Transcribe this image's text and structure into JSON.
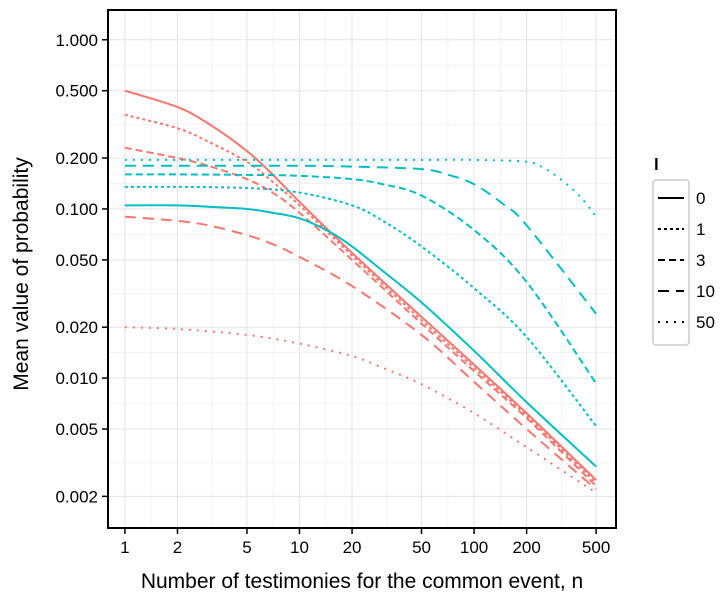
{
  "chart_data": {
    "type": "line",
    "title": "",
    "xlabel": "Number of testimonies for the common event, n",
    "ylabel": "Mean value of probability",
    "x_scale": "log",
    "y_scale": "log",
    "xlim": [
      0.8,
      650
    ],
    "ylim": [
      0.0013,
      1.5
    ],
    "x_ticks": [
      1,
      2,
      5,
      10,
      20,
      50,
      100,
      200,
      500
    ],
    "x_tick_labels": [
      "1",
      "2",
      "5",
      "10",
      "20",
      "50",
      "100",
      "200",
      "500"
    ],
    "y_ticks": [
      0.002,
      0.005,
      0.01,
      0.02,
      0.05,
      0.1,
      0.2,
      0.5,
      1.0
    ],
    "y_tick_labels": [
      "0.002",
      "0.005",
      "0.010",
      "0.020",
      "0.050",
      "0.100",
      "0.200",
      "0.500",
      "1.000"
    ],
    "grid": true,
    "legend": {
      "title": "l",
      "placement": "right",
      "entries": [
        "0",
        "1",
        "3",
        "10",
        "50"
      ],
      "dash_styles": [
        "solid",
        "dotted-dense",
        "dashed-short",
        "dashed-long",
        "dotted-sparse"
      ]
    },
    "series": [
      {
        "group": "red",
        "l": "0",
        "color": "#F8766D",
        "x": [
          1,
          2,
          3,
          5,
          7,
          10,
          20,
          50,
          100,
          200,
          500
        ],
        "y": [
          0.5,
          0.4,
          0.32,
          0.22,
          0.16,
          0.11,
          0.055,
          0.023,
          0.012,
          0.0062,
          0.0025
        ]
      },
      {
        "group": "red",
        "l": "1",
        "color": "#F8766D",
        "x": [
          1,
          2,
          3,
          5,
          7,
          10,
          20,
          50,
          100,
          200,
          500
        ],
        "y": [
          0.36,
          0.3,
          0.25,
          0.19,
          0.145,
          0.105,
          0.053,
          0.022,
          0.0115,
          0.006,
          0.0024
        ]
      },
      {
        "group": "red",
        "l": "3",
        "color": "#F8766D",
        "x": [
          1,
          2,
          3,
          5,
          7,
          10,
          20,
          50,
          100,
          200,
          500
        ],
        "y": [
          0.23,
          0.2,
          0.18,
          0.15,
          0.125,
          0.095,
          0.05,
          0.021,
          0.011,
          0.0058,
          0.0023
        ]
      },
      {
        "group": "red",
        "l": "10",
        "color": "#F8766D",
        "x": [
          1,
          2,
          3,
          5,
          7,
          10,
          20,
          50,
          100,
          200,
          500
        ],
        "y": [
          0.09,
          0.085,
          0.08,
          0.07,
          0.062,
          0.052,
          0.035,
          0.018,
          0.0095,
          0.005,
          0.0022
        ]
      },
      {
        "group": "red",
        "l": "50",
        "color": "#F8766D",
        "x": [
          1,
          2,
          5,
          10,
          20,
          30,
          50,
          100,
          200,
          500
        ],
        "y": [
          0.02,
          0.0195,
          0.018,
          0.016,
          0.0135,
          0.0115,
          0.0092,
          0.0062,
          0.0039,
          0.0021
        ]
      },
      {
        "group": "teal",
        "l": "0",
        "color": "#00BFC4",
        "x": [
          1,
          2,
          3,
          5,
          7,
          10,
          15,
          20,
          30,
          50,
          100,
          200,
          500
        ],
        "y": [
          0.105,
          0.105,
          0.103,
          0.1,
          0.095,
          0.088,
          0.073,
          0.06,
          0.043,
          0.028,
          0.0145,
          0.0072,
          0.003
        ]
      },
      {
        "group": "teal",
        "l": "1",
        "color": "#00BFC4",
        "x": [
          1,
          2,
          5,
          10,
          20,
          30,
          50,
          100,
          200,
          500
        ],
        "y": [
          0.135,
          0.135,
          0.133,
          0.125,
          0.105,
          0.085,
          0.06,
          0.034,
          0.0175,
          0.0052
        ]
      },
      {
        "group": "teal",
        "l": "3",
        "color": "#00BFC4",
        "x": [
          1,
          2,
          5,
          10,
          20,
          30,
          50,
          100,
          200,
          500
        ],
        "y": [
          0.16,
          0.16,
          0.159,
          0.157,
          0.15,
          0.14,
          0.12,
          0.075,
          0.037,
          0.0093
        ]
      },
      {
        "group": "teal",
        "l": "10",
        "color": "#00BFC4",
        "x": [
          1,
          2,
          5,
          10,
          20,
          50,
          70,
          100,
          150,
          200,
          500
        ],
        "y": [
          0.18,
          0.18,
          0.18,
          0.18,
          0.178,
          0.172,
          0.16,
          0.14,
          0.105,
          0.08,
          0.024
        ]
      },
      {
        "group": "teal",
        "l": "50",
        "color": "#00BFC4",
        "x": [
          1,
          2,
          5,
          10,
          20,
          50,
          100,
          200,
          250,
          300,
          400,
          500
        ],
        "y": [
          0.195,
          0.195,
          0.195,
          0.195,
          0.195,
          0.195,
          0.195,
          0.19,
          0.175,
          0.155,
          0.12,
          0.09
        ]
      }
    ]
  }
}
